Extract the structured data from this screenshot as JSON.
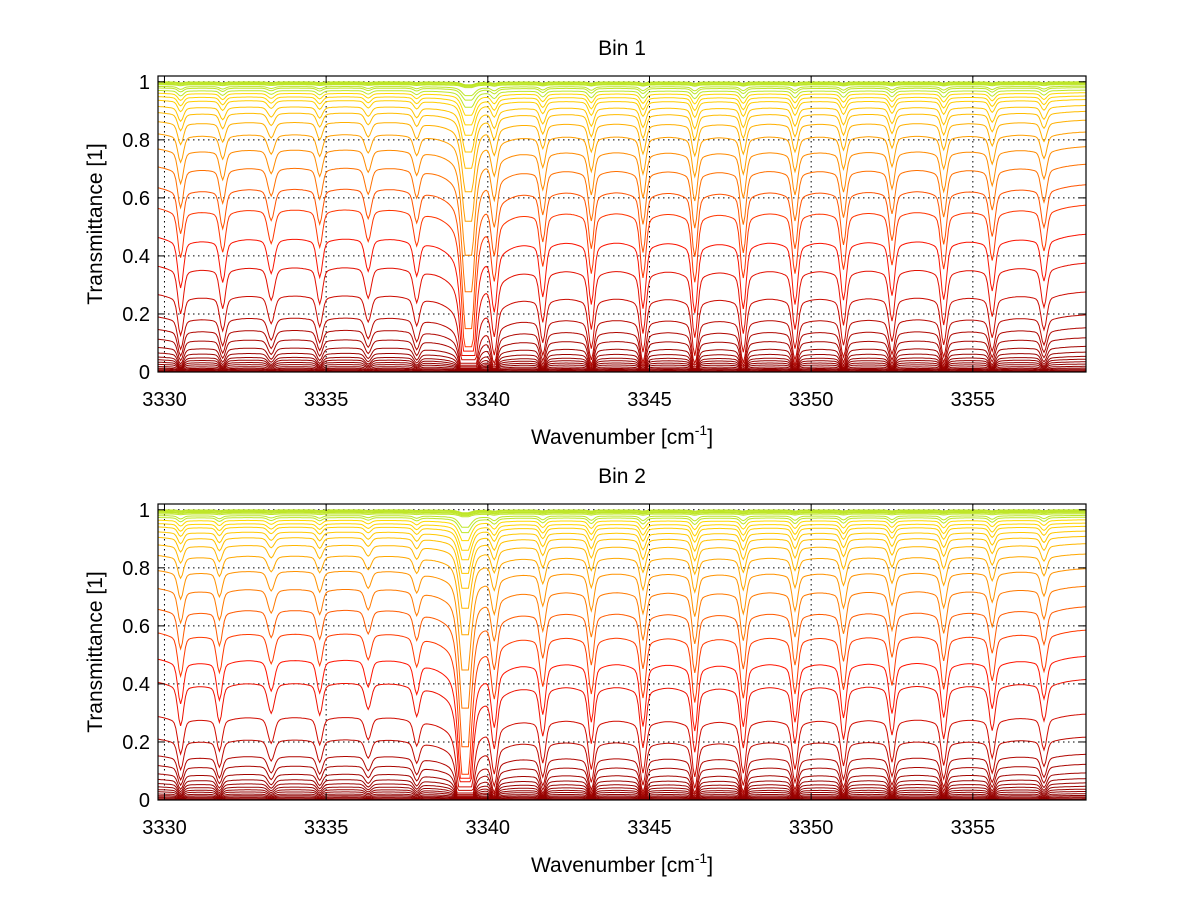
{
  "chart_data": [
    {
      "type": "line",
      "title": "Bin 1",
      "xlabel": "Wavenumber [cm",
      "xlabel_sup": "-1",
      "xlabel_end": "]",
      "ylabel": "Transmittance [1]",
      "xlim": [
        3329.8,
        3358.5
      ],
      "ylim": [
        0,
        1.02
      ],
      "xticks": [
        3330,
        3335,
        3340,
        3345,
        3350,
        3355
      ],
      "xtick_labels": [
        "3330",
        "3335",
        "3340",
        "3345",
        "3350",
        "3355"
      ],
      "yticks": [
        0,
        0.2,
        0.4,
        0.6,
        0.8,
        1
      ],
      "ytick_labels": [
        "0",
        "0.2",
        "0.4",
        "0.6",
        "0.8",
        "1"
      ],
      "grid": true,
      "colormap": "autumn-hot",
      "lines": [
        {
          "x": 3330.5,
          "depth": 0.25,
          "width": 0.12
        },
        {
          "x": 3331.8,
          "depth": 0.22,
          "width": 0.12
        },
        {
          "x": 3333.3,
          "depth": 0.18,
          "width": 0.14
        },
        {
          "x": 3334.8,
          "depth": 0.2,
          "width": 0.12
        },
        {
          "x": 3336.3,
          "depth": 0.17,
          "width": 0.13
        },
        {
          "x": 3337.8,
          "depth": 0.18,
          "width": 0.12
        },
        {
          "x": 3339.4,
          "depth": 0.92,
          "width": 0.22
        },
        {
          "x": 3340.2,
          "depth": 0.3,
          "width": 0.12
        },
        {
          "x": 3341.7,
          "depth": 0.28,
          "width": 0.12
        },
        {
          "x": 3343.2,
          "depth": 0.32,
          "width": 0.12
        },
        {
          "x": 3344.8,
          "depth": 0.34,
          "width": 0.12
        },
        {
          "x": 3346.4,
          "depth": 0.36,
          "width": 0.12
        },
        {
          "x": 3347.9,
          "depth": 0.34,
          "width": 0.12
        },
        {
          "x": 3349.5,
          "depth": 0.32,
          "width": 0.12
        },
        {
          "x": 3351.0,
          "depth": 0.3,
          "width": 0.12
        },
        {
          "x": 3352.5,
          "depth": 0.28,
          "width": 0.12
        },
        {
          "x": 3354.1,
          "depth": 0.3,
          "width": 0.12
        },
        {
          "x": 3355.6,
          "depth": 0.26,
          "width": 0.12
        },
        {
          "x": 3357.2,
          "depth": 0.22,
          "width": 0.12
        }
      ],
      "curve_baselines": [
        1.0,
        0.998,
        0.996,
        0.993,
        0.99,
        0.985,
        0.98,
        0.972,
        0.963,
        0.952,
        0.94,
        0.92,
        0.9,
        0.87,
        0.83,
        0.78,
        0.72,
        0.65,
        0.58,
        0.48,
        0.38,
        0.28,
        0.2,
        0.155,
        0.12,
        0.09,
        0.07,
        0.055,
        0.045,
        0.036,
        0.028,
        0.02,
        0.014,
        0.01,
        0.006,
        0.003
      ]
    },
    {
      "type": "line",
      "title": "Bin 2",
      "xlabel": "Wavenumber [cm",
      "xlabel_sup": "-1",
      "xlabel_end": "]",
      "ylabel": "Transmittance [1]",
      "xlim": [
        3329.8,
        3358.5
      ],
      "ylim": [
        0,
        1.02
      ],
      "xticks": [
        3330,
        3335,
        3340,
        3345,
        3350,
        3355
      ],
      "xtick_labels": [
        "3330",
        "3335",
        "3340",
        "3345",
        "3350",
        "3355"
      ],
      "yticks": [
        0,
        0.2,
        0.4,
        0.6,
        0.8,
        1
      ],
      "ytick_labels": [
        "0",
        "0.2",
        "0.4",
        "0.6",
        "0.8",
        "1"
      ],
      "grid": true,
      "colormap": "autumn-hot",
      "lines": [
        {
          "x": 3330.5,
          "depth": 0.22,
          "width": 0.12
        },
        {
          "x": 3331.7,
          "depth": 0.2,
          "width": 0.12
        },
        {
          "x": 3333.3,
          "depth": 0.16,
          "width": 0.14
        },
        {
          "x": 3334.8,
          "depth": 0.17,
          "width": 0.12
        },
        {
          "x": 3336.3,
          "depth": 0.14,
          "width": 0.13
        },
        {
          "x": 3337.8,
          "depth": 0.16,
          "width": 0.12
        },
        {
          "x": 3339.3,
          "depth": 0.88,
          "width": 0.22
        },
        {
          "x": 3340.2,
          "depth": 0.28,
          "width": 0.12
        },
        {
          "x": 3341.7,
          "depth": 0.26,
          "width": 0.12
        },
        {
          "x": 3343.2,
          "depth": 0.3,
          "width": 0.12
        },
        {
          "x": 3344.8,
          "depth": 0.32,
          "width": 0.12
        },
        {
          "x": 3346.4,
          "depth": 0.34,
          "width": 0.12
        },
        {
          "x": 3347.9,
          "depth": 0.32,
          "width": 0.12
        },
        {
          "x": 3349.5,
          "depth": 0.3,
          "width": 0.12
        },
        {
          "x": 3351.0,
          "depth": 0.28,
          "width": 0.12
        },
        {
          "x": 3352.5,
          "depth": 0.26,
          "width": 0.12
        },
        {
          "x": 3354.1,
          "depth": 0.28,
          "width": 0.12
        },
        {
          "x": 3355.6,
          "depth": 0.24,
          "width": 0.12
        },
        {
          "x": 3357.2,
          "depth": 0.2,
          "width": 0.12
        }
      ],
      "curve_baselines": [
        1.0,
        0.998,
        0.996,
        0.993,
        0.99,
        0.986,
        0.981,
        0.975,
        0.966,
        0.955,
        0.944,
        0.928,
        0.91,
        0.885,
        0.85,
        0.8,
        0.74,
        0.67,
        0.59,
        0.5,
        0.42,
        0.3,
        0.22,
        0.16,
        0.125,
        0.095,
        0.075,
        0.06,
        0.048,
        0.038,
        0.03,
        0.022,
        0.016,
        0.011,
        0.007,
        0.003
      ]
    }
  ]
}
